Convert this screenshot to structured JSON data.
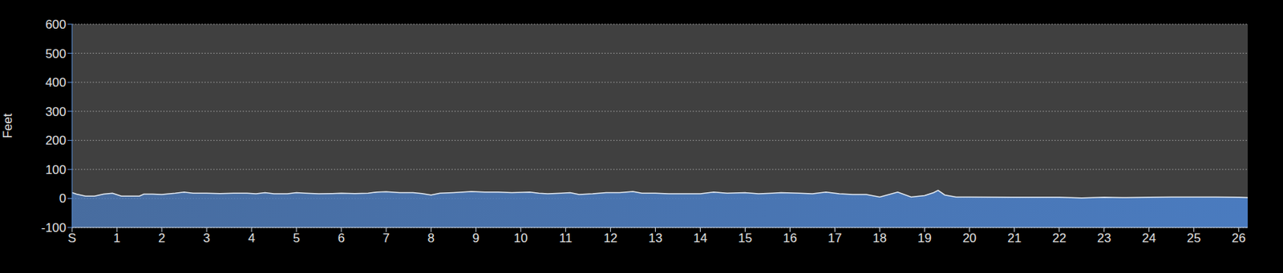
{
  "chart_data": {
    "type": "area",
    "y_label": "Feet",
    "color": "#4a7bbf",
    "grid": true,
    "xlim": [
      0,
      26.2
    ],
    "ylim": [
      -100,
      600
    ],
    "yticks": [
      -100,
      0,
      100,
      200,
      300,
      400,
      500,
      600
    ],
    "xticks": [
      {
        "value": 0,
        "label": "S"
      },
      1,
      2,
      3,
      4,
      5,
      6,
      7,
      8,
      9,
      10,
      11,
      12,
      13,
      14,
      15,
      16,
      17,
      18,
      19,
      20,
      21,
      22,
      23,
      24,
      25,
      26
    ],
    "x": [
      0,
      0.1,
      0.3,
      0.5,
      0.7,
      0.9,
      1.1,
      1.3,
      1.5,
      1.6,
      1.8,
      2.0,
      2.3,
      2.5,
      2.7,
      3,
      3.3,
      3.6,
      3.9,
      4.1,
      4.3,
      4.5,
      4.8,
      5,
      5.2,
      5.5,
      5.8,
      6,
      6.3,
      6.6,
      6.8,
      7,
      7.3,
      7.6,
      7.8,
      8.0,
      8.2,
      8.5,
      8.7,
      8.9,
      9.2,
      9.5,
      9.8,
      10.2,
      10.4,
      10.6,
      10.9,
      11.1,
      11.3,
      11.6,
      11.9,
      12.2,
      12.5,
      12.7,
      13,
      13.3,
      13.6,
      14,
      14.3,
      14.6,
      15,
      15.3,
      15.6,
      15.8,
      16.2,
      16.5,
      16.8,
      17.1,
      17.4,
      17.7,
      18,
      18.4,
      18.7,
      19,
      19.2,
      19.3,
      19.45,
      19.7,
      20,
      21,
      22,
      22.5,
      23,
      23.5,
      24,
      24.5,
      25,
      25.5,
      26,
      26.2
    ],
    "values": [
      20,
      15,
      8,
      8,
      15,
      18,
      8,
      8,
      8,
      15,
      15,
      14,
      18,
      22,
      18,
      18,
      17,
      18,
      18,
      16,
      20,
      16,
      16,
      20,
      18,
      16,
      17,
      18,
      17,
      18,
      22,
      23,
      20,
      20,
      17,
      12,
      18,
      20,
      22,
      24,
      22,
      22,
      20,
      22,
      18,
      16,
      18,
      20,
      14,
      16,
      20,
      20,
      24,
      18,
      18,
      16,
      16,
      16,
      22,
      18,
      20,
      16,
      18,
      20,
      18,
      16,
      22,
      16,
      14,
      14,
      5,
      22,
      5,
      10,
      20,
      28,
      12,
      5,
      5,
      4,
      4,
      2,
      4,
      3,
      4,
      5,
      5,
      5,
      4,
      3
    ]
  }
}
